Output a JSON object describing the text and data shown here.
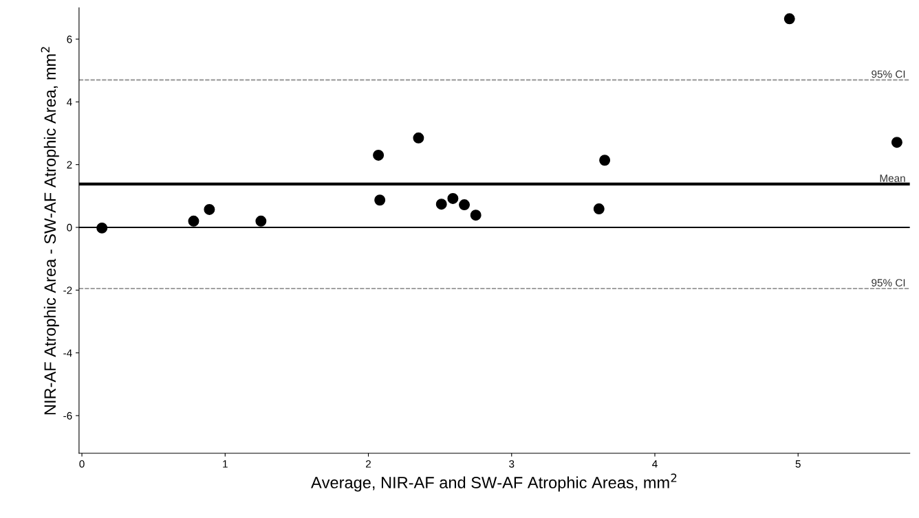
{
  "chart_data": {
    "type": "scatter",
    "xlabel": "Average, NIR-AF and SW-AF Atrophic Areas, mm$^{2}$",
    "ylabel": "NIR-AF Atrophic Area - SW-AF Atrophic Area, mm$^{2}$",
    "x": [
      0.14,
      0.78,
      0.89,
      1.25,
      2.07,
      2.08,
      2.35,
      2.51,
      2.59,
      2.67,
      2.75,
      3.61,
      3.65,
      4.94,
      5.69
    ],
    "series": [
      {
        "color": "#000000",
        "values": [
          -0.02,
          0.2,
          0.57,
          0.2,
          2.3,
          0.87,
          2.85,
          0.74,
          0.92,
          0.72,
          0.39,
          0.59,
          2.14,
          6.65,
          2.71
        ]
      }
    ],
    "marker": "circle",
    "xlim": [
      -0.02,
      5.78
    ],
    "ylim": [
      -7.2,
      7.0
    ],
    "xticks": [
      0,
      1,
      2,
      3,
      4,
      5
    ],
    "yticks": [
      -6,
      -4,
      -2,
      0,
      2,
      4,
      6
    ],
    "ref_lines": [
      {
        "axis": "y",
        "value": 4.7,
        "label": "95% CI",
        "color": "#a0a0a0",
        "line_style": "dashed"
      },
      {
        "axis": "y",
        "value": 1.38,
        "label": "Mean",
        "color": "#000000",
        "line_style": "solid"
      },
      {
        "axis": "y",
        "value": 0,
        "color": "#000000",
        "line_style": "solid"
      },
      {
        "axis": "y",
        "value": -1.95,
        "label": "95% CI",
        "color": "#a0a0a0",
        "line_style": "dashed"
      }
    ],
    "grid": false,
    "legend": false
  }
}
